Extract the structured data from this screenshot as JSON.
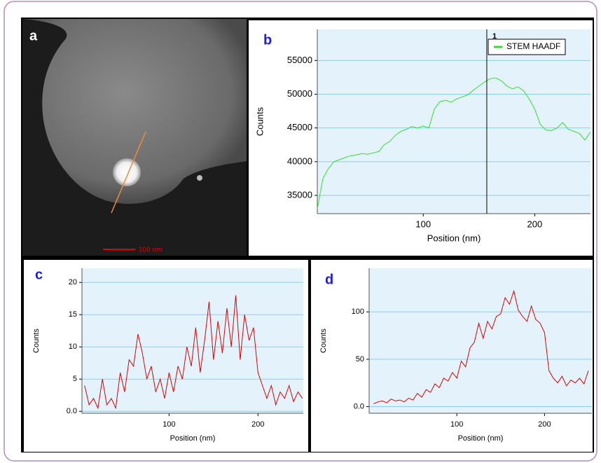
{
  "image_panel": {
    "panel_label": "a",
    "scale_bar": "100 nm"
  },
  "chart_data": [
    {
      "type": "line",
      "panel_label": "b",
      "xlabel": "Position (nm)",
      "ylabel": "Counts",
      "xlim": [
        5,
        250
      ],
      "xticks": [
        100,
        200
      ],
      "ylim": [
        32300,
        59600
      ],
      "yticks": [
        35000,
        40000,
        45000,
        50000,
        55000
      ],
      "grid": true,
      "legend": "top-right",
      "cursor": {
        "value": 157,
        "label": "1"
      },
      "x": [
        5,
        10,
        15,
        20,
        25,
        30,
        35,
        40,
        45,
        50,
        55,
        60,
        65,
        70,
        75,
        80,
        85,
        90,
        95,
        100,
        105,
        110,
        115,
        120,
        125,
        130,
        135,
        140,
        145,
        150,
        155,
        160,
        165,
        170,
        175,
        180,
        185,
        190,
        195,
        200,
        205,
        210,
        215,
        220,
        225,
        230,
        235,
        240,
        245,
        250
      ],
      "series": [
        {
          "name": "STEM HAADF",
          "color": "#33dd33",
          "values": [
            33000,
            37500,
            39000,
            40000,
            40300,
            40600,
            40900,
            41000,
            41200,
            41100,
            41300,
            41500,
            42500,
            43000,
            43900,
            44500,
            44800,
            45200,
            45000,
            45300,
            45000,
            47800,
            48900,
            49100,
            48800,
            49300,
            49600,
            49900,
            50600,
            51200,
            51800,
            52300,
            52400,
            52000,
            51200,
            50800,
            51100,
            50500,
            49300,
            47800,
            45500,
            44700,
            44600,
            45000,
            45800,
            44800,
            44500,
            44200,
            43200,
            44400
          ]
        }
      ]
    },
    {
      "type": "line",
      "panel_label": "c",
      "xlabel": "Position (nm)",
      "ylabel": "Counts",
      "xlim": [
        2,
        251
      ],
      "xticks": [
        100,
        200
      ],
      "ylim": [
        -0.3,
        22.2
      ],
      "yticks": [
        {
          "value": 0,
          "label": "0.0"
        },
        5,
        10,
        15,
        20
      ],
      "grid": true,
      "x": [
        5,
        10,
        15,
        20,
        25,
        30,
        35,
        40,
        45,
        50,
        55,
        60,
        65,
        70,
        75,
        80,
        85,
        90,
        95,
        100,
        105,
        110,
        115,
        120,
        125,
        130,
        135,
        140,
        145,
        150,
        155,
        160,
        165,
        170,
        175,
        180,
        185,
        190,
        195,
        200,
        205,
        210,
        215,
        220,
        225,
        230,
        235,
        240,
        245,
        250
      ],
      "series": [
        {
          "color": "#e00000",
          "values": [
            4,
            1,
            2,
            0.5,
            5,
            1,
            2,
            0.5,
            6,
            3,
            8,
            7,
            12,
            9,
            5,
            7,
            3,
            5,
            2,
            6,
            3,
            7,
            5,
            10,
            7,
            13,
            6,
            11,
            17,
            8,
            14,
            9,
            16,
            10,
            18,
            8,
            15,
            11,
            13,
            6,
            4,
            2,
            4,
            1,
            3,
            2,
            4,
            1.5,
            3,
            2
          ]
        }
      ]
    },
    {
      "type": "line",
      "panel_label": "d",
      "xlabel": "Position (nm)",
      "ylabel": "Counts",
      "xlim": [
        0,
        254
      ],
      "xticks": [
        100,
        200
      ],
      "ylim": [
        -7,
        146
      ],
      "yticks": [
        {
          "value": 0,
          "label": "0.0"
        },
        50,
        100
      ],
      "grid": true,
      "x": [
        5,
        10,
        15,
        20,
        25,
        30,
        35,
        40,
        45,
        50,
        55,
        60,
        65,
        70,
        75,
        80,
        85,
        90,
        95,
        100,
        105,
        110,
        115,
        120,
        125,
        130,
        135,
        140,
        145,
        150,
        155,
        160,
        165,
        170,
        175,
        180,
        185,
        190,
        195,
        200,
        205,
        210,
        215,
        220,
        225,
        230,
        235,
        240,
        245,
        250
      ],
      "series": [
        {
          "color": "#e00000",
          "values": [
            3,
            5,
            6,
            4,
            8,
            6,
            7,
            5,
            9,
            7,
            14,
            10,
            18,
            15,
            24,
            20,
            30,
            27,
            36,
            30,
            48,
            42,
            62,
            68,
            88,
            72,
            90,
            82,
            95,
            98,
            115,
            108,
            122,
            102,
            95,
            90,
            106,
            92,
            88,
            78,
            38,
            30,
            25,
            32,
            22,
            28,
            25,
            30,
            24,
            38
          ]
        }
      ]
    }
  ]
}
